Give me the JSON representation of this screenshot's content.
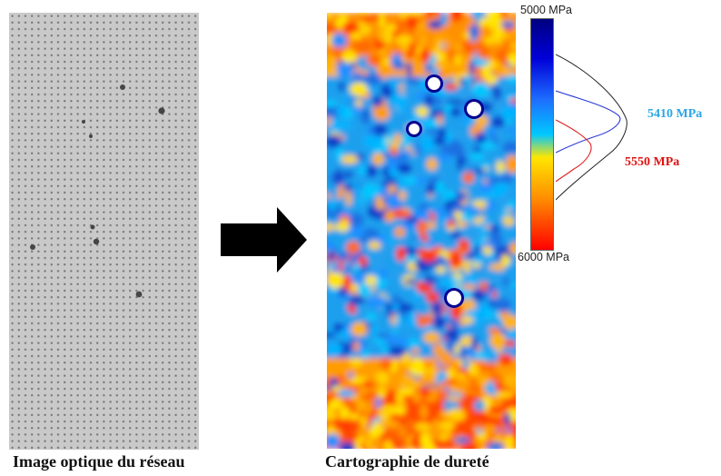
{
  "captions": {
    "optical": "Image optique du réseau",
    "hardness": "Cartographie de dureté"
  },
  "scale": {
    "top_label": "5000 MPa",
    "bottom_label": "6000 MPa",
    "colors": [
      "#000080",
      "#0000d8",
      "#1e6eff",
      "#00c8ff",
      "#ffe600",
      "#ff8c00",
      "#ff0000"
    ]
  },
  "peaks": {
    "blue": {
      "label": "5410 MPa",
      "color": "#2aa6e6"
    },
    "red": {
      "label": "5550 MPa",
      "color": "#e01010"
    }
  },
  "icons": {
    "arrow": "right-arrow-icon"
  }
}
